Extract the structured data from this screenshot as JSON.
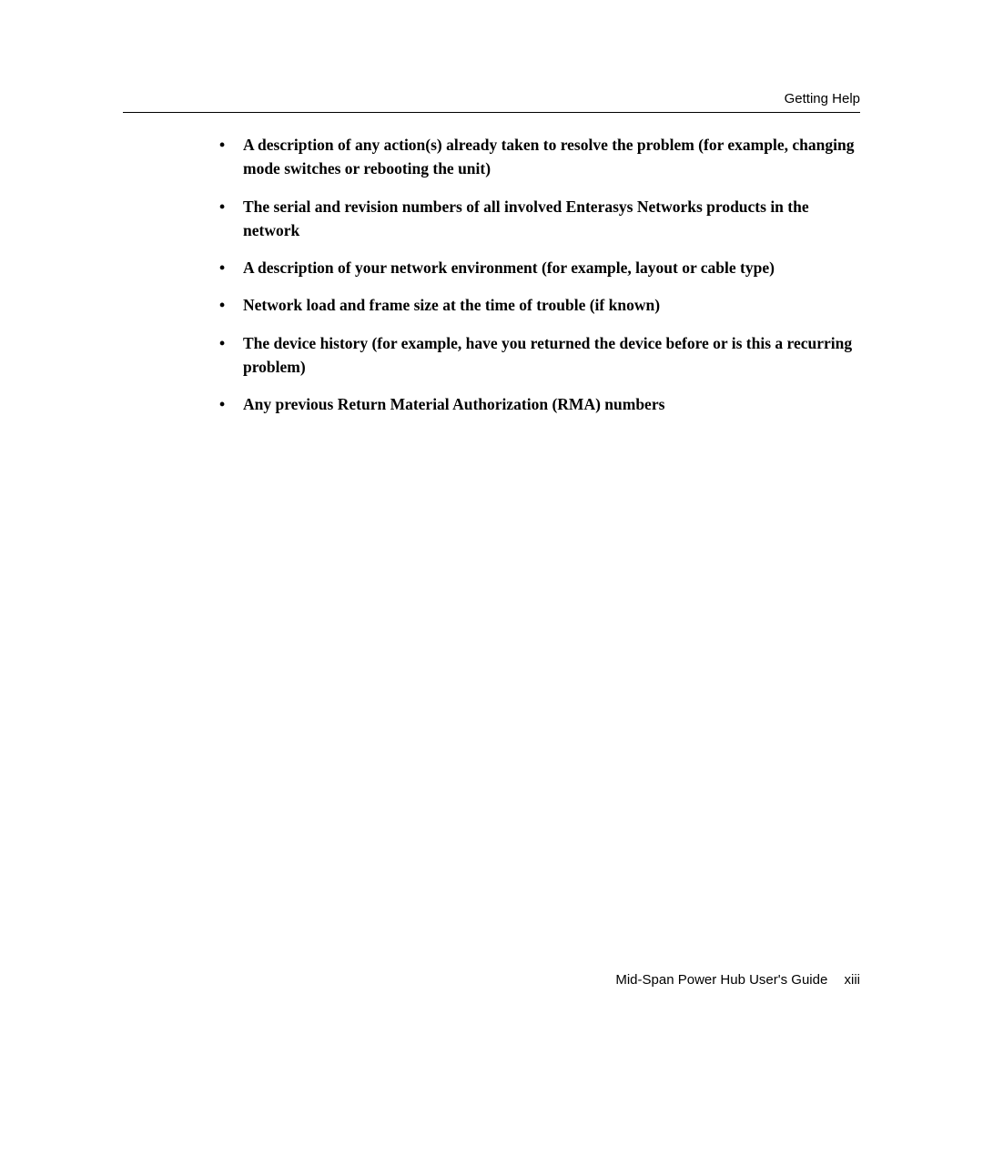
{
  "header": {
    "section_title": "Getting Help"
  },
  "bullets": [
    "A description of any action(s) already taken to resolve the problem (for example, changing mode switches or rebooting the unit)",
    "The serial and revision numbers of all involved Enterasys Networks products in the network",
    "A description of your network environment (for example, layout or cable type)",
    "Network load and frame size at the time of trouble (if known)",
    "The device history (for example, have you returned the device before or is this a recurring problem)",
    "Any previous Return Material Authorization (RMA) numbers"
  ],
  "footer": {
    "doc_title": "Mid-Span Power Hub User's Guide",
    "page_number": "xiii"
  }
}
